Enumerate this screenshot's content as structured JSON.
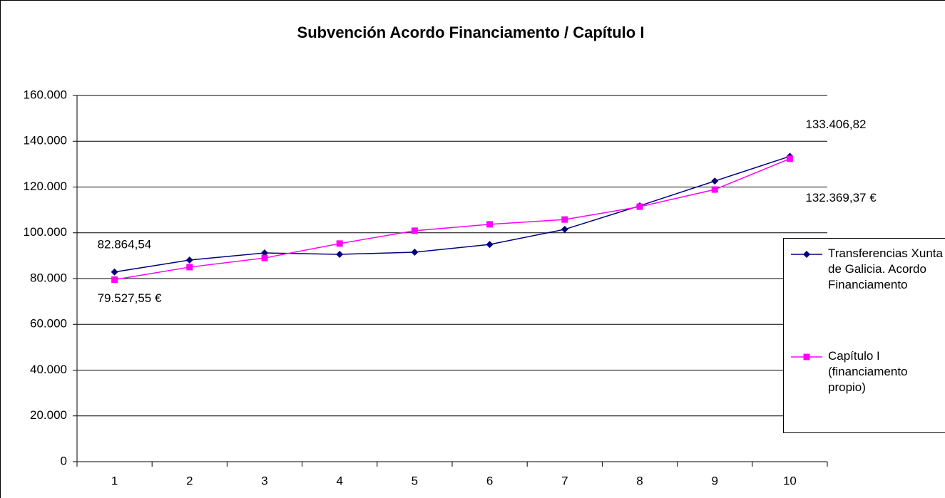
{
  "chart_data": {
    "type": "line",
    "title": "Subvención Acordo Financiamento / Capítulo I",
    "categories": [
      "1",
      "2",
      "3",
      "4",
      "5",
      "6",
      "7",
      "8",
      "9",
      "10"
    ],
    "series": [
      {
        "name": "Transferencias Xunta de Galicia. Acordo Financiamento",
        "color": "#000080",
        "marker": "diamond",
        "values": [
          82864.54,
          88100,
          91200,
          90600,
          91500,
          94900,
          101500,
          111800,
          122600,
          133406.82
        ],
        "value_labels": [
          "82.864,54",
          null,
          null,
          null,
          null,
          null,
          null,
          null,
          null,
          "133.406,82"
        ]
      },
      {
        "name": "Capítulo I (financiamento propio)",
        "color": "#ff00ff",
        "marker": "square",
        "values": [
          79527.55,
          85000,
          89000,
          95300,
          100900,
          103700,
          105800,
          111400,
          118900,
          132369.37
        ],
        "value_labels": [
          "79.527,55 €",
          null,
          null,
          null,
          null,
          null,
          null,
          null,
          null,
          "132.369,37 €"
        ]
      }
    ],
    "ylim": [
      0,
      160000
    ],
    "yticks": [
      0,
      {
        "value": 20000,
        "label": "20.000"
      },
      {
        "value": 40000,
        "label": "40.000"
      },
      {
        "value": 60000,
        "label": "60.000"
      },
      {
        "value": 80000,
        "label": "80.000"
      },
      {
        "value": 100000,
        "label": "100.000"
      },
      {
        "value": 120000,
        "label": "120.000"
      },
      {
        "value": 140000,
        "label": "140.000"
      },
      {
        "value": 160000,
        "label": "160.000"
      }
    ],
    "grid": true,
    "legend": "right"
  }
}
